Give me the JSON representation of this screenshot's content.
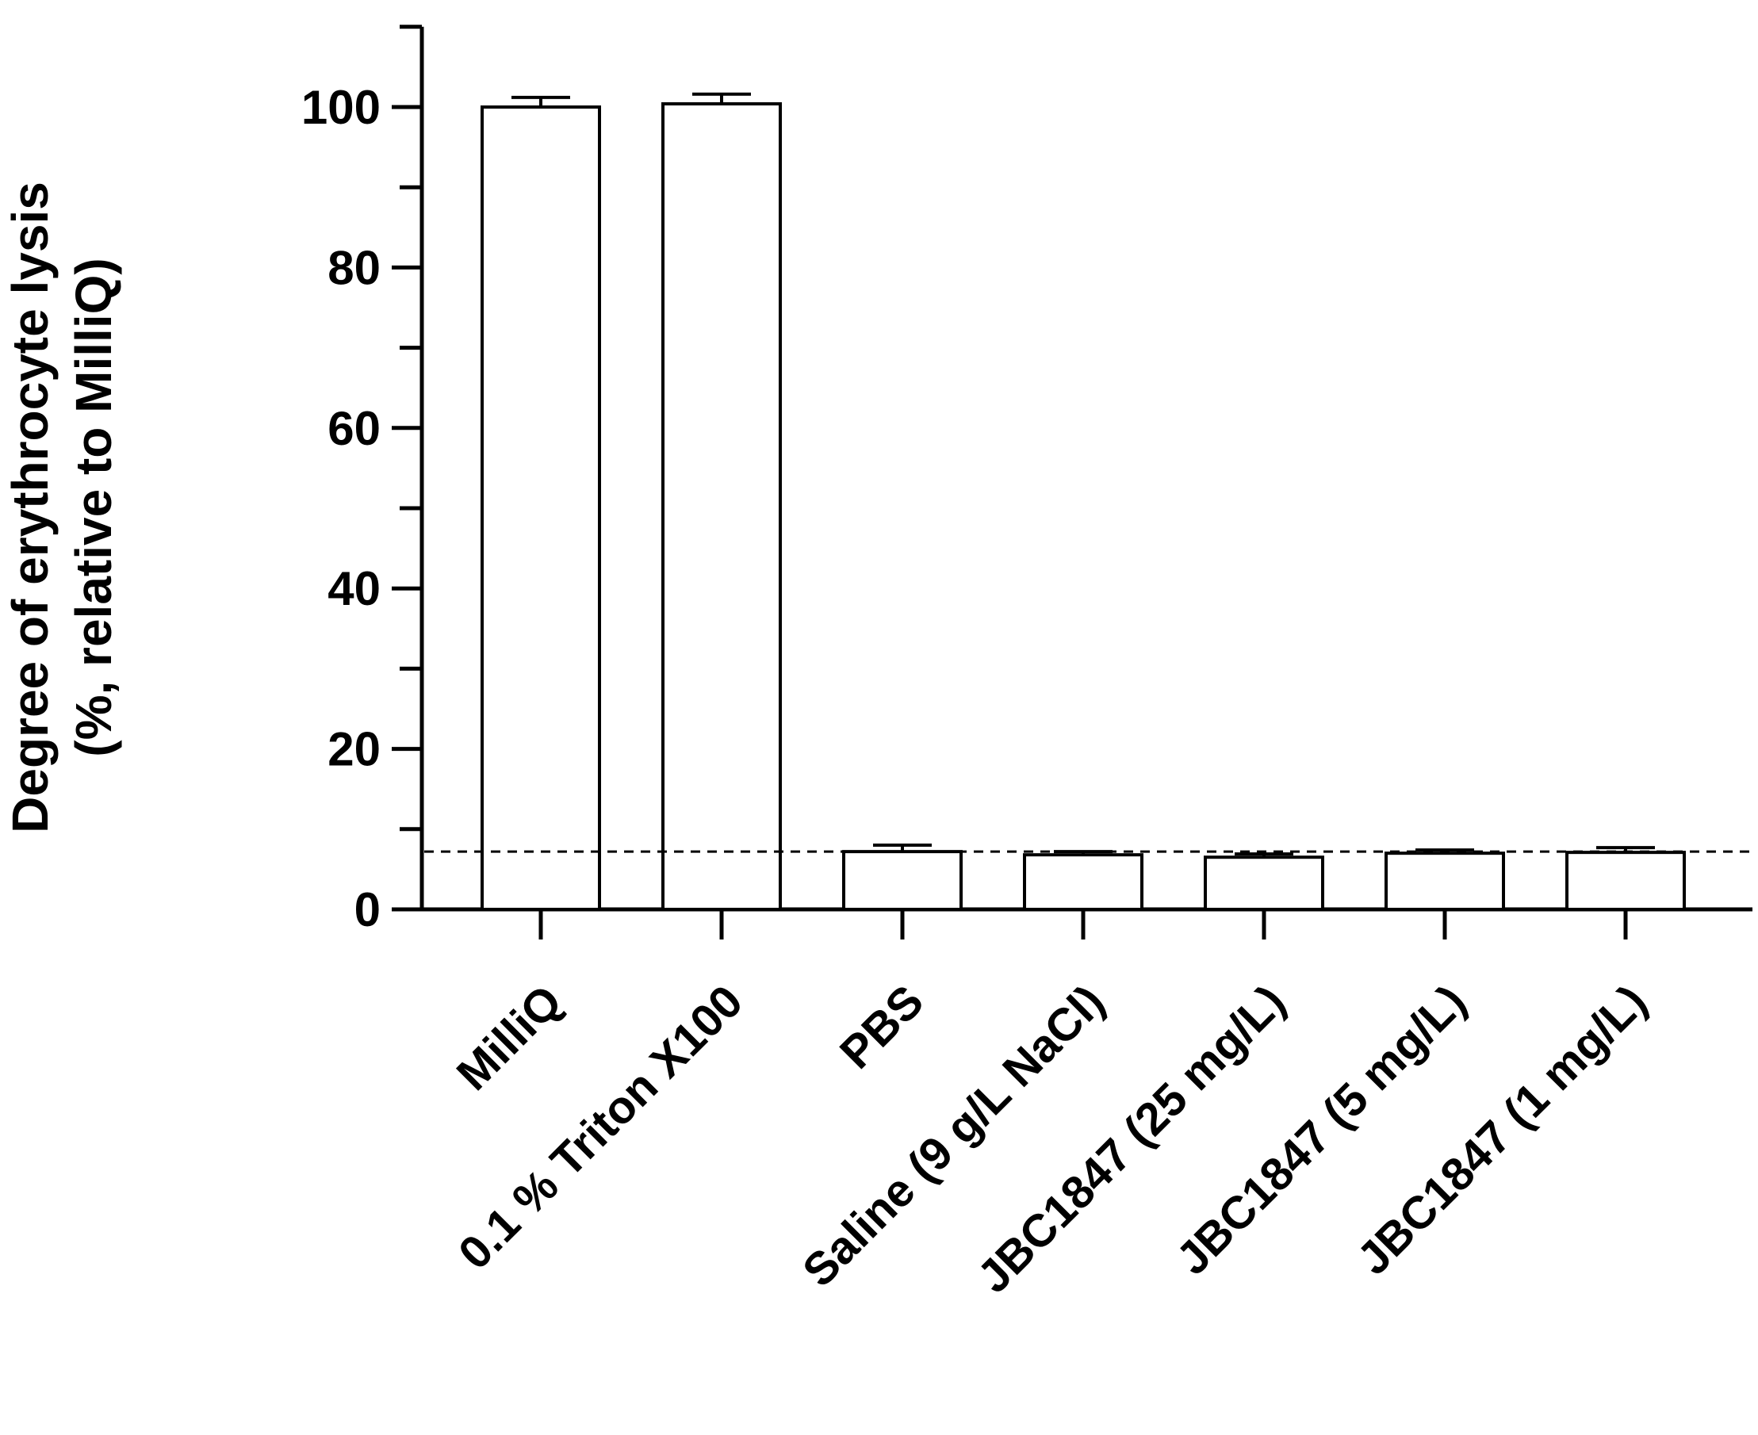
{
  "chart_data": {
    "type": "bar",
    "ylabel_line1": "Degree of erythrocyte lysis",
    "ylabel_line2": "(%, relative to MilliQ)",
    "xlabel": "",
    "ylim": [
      0,
      110
    ],
    "yticks": [
      0,
      20,
      40,
      60,
      80,
      100
    ],
    "categories": [
      "MilliQ",
      "0.1 % Triton X100",
      "PBS",
      "Saline (9 g/L NaCl)",
      "JBC1847 (25 mg/L)",
      "JBC1847 (5 mg/L)",
      "JBC1847 (1 mg/L)"
    ],
    "values": [
      100,
      100.4,
      7.2,
      6.8,
      6.5,
      7.0,
      7.1
    ],
    "errors": [
      1.2,
      1.2,
      0.8,
      0.4,
      0.4,
      0.4,
      0.6
    ],
    "reference_line": 7.2,
    "grid": false,
    "legend": "none",
    "bar_fill": "#ffffff",
    "stroke_color": "#000000"
  }
}
